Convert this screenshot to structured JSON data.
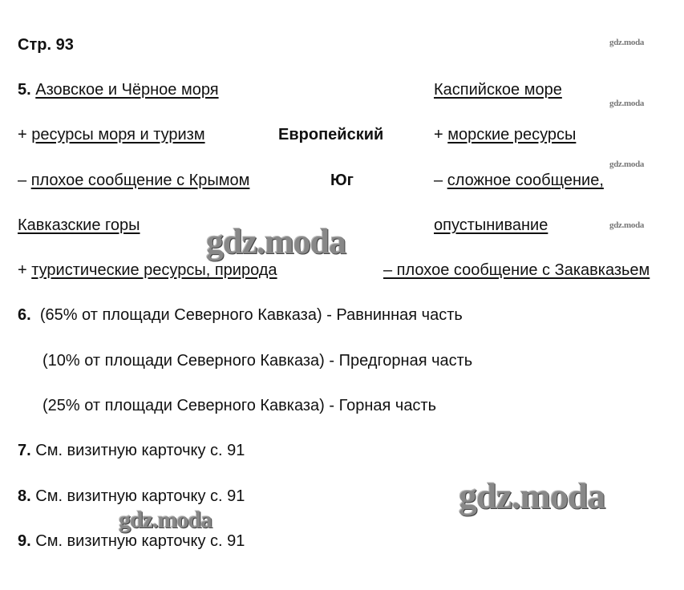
{
  "page_label": "Стр. 93",
  "q5": {
    "number": "5.",
    "left_title": "Азовское и Чёрное моря",
    "right_title": "Каспийское море",
    "center_line1": "Европейский",
    "center_line2": "Юг",
    "left_plus_sign": "+",
    "left_plus": "ресурсы моря и туризм",
    "left_minus_sign": "–",
    "left_minus": "плохое сообщение с Крымом",
    "right_plus_sign": "+",
    "right_plus": "морские ресурсы",
    "right_minus_sign": "–",
    "right_minus_line1": "сложное сообщение,",
    "right_minus_line2": "опустынивание",
    "mountains_title": "Кавказские горы",
    "mountains_plus_sign": "+",
    "mountains_plus": "туристические ресурсы, природа",
    "mountains_minus": "– плохое сообщение с Закавказьем"
  },
  "q6": {
    "number": "6.",
    "lines": [
      "(65% от площади Северного Кавказа) - Равнинная часть",
      "(10% от площади Северного Кавказа) - Предгорная часть",
      "(25% от площади Северного Кавказа) - Горная часть"
    ]
  },
  "q7": {
    "number": "7.",
    "text": "См. визитную карточку с. 91"
  },
  "q8": {
    "number": "8.",
    "text": "См. визитную карточку с. 91"
  },
  "q9": {
    "number": "9.",
    "text": "См. визитную карточку с. 91"
  },
  "watermark": "gdz.moda"
}
